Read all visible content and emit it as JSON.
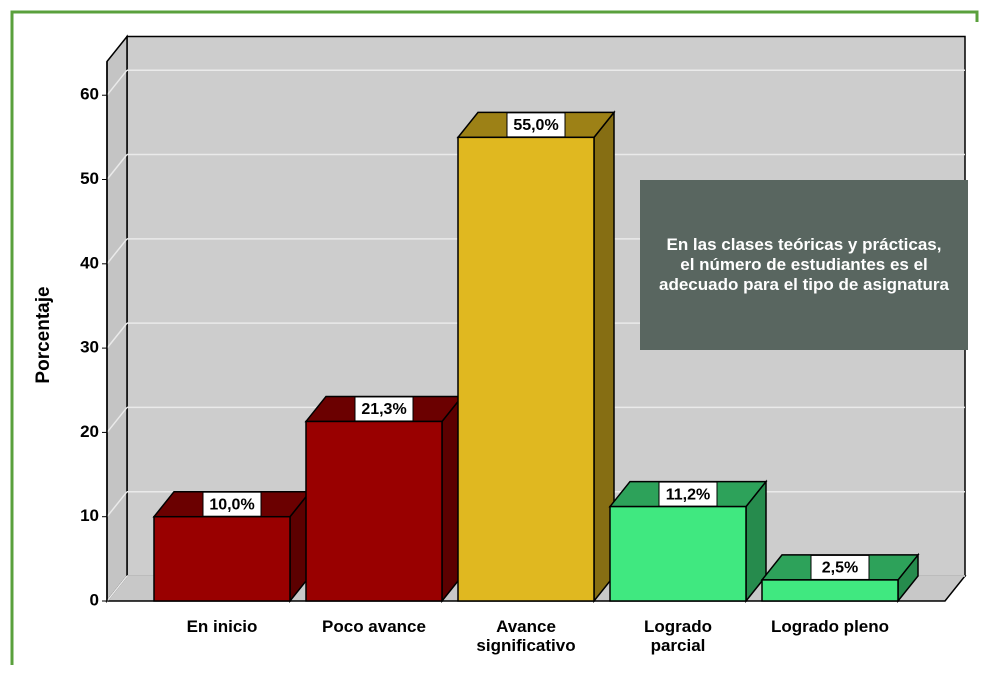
{
  "chart_data": {
    "type": "bar3d",
    "categories": [
      "En inicio",
      "Poco avance",
      "Avance significativo",
      "Logrado parcial",
      "Logrado pleno"
    ],
    "values": [
      10.0,
      21.3,
      55.0,
      11.2,
      2.5
    ],
    "value_labels": [
      "10,0%",
      "21,3%",
      "55,0%",
      "11,2%",
      "2,5%"
    ],
    "colors": [
      "#990000",
      "#990000",
      "#e0b820",
      "#40e880",
      "#40e880"
    ],
    "y_label": "Porcentaje",
    "annotation": "En las clases teóricas y prácticas, el número de estudiantes es el adecuado para el tipo de asignatura",
    "ylim": [
      0,
      64
    ],
    "yticks": [
      0,
      10,
      20,
      30,
      40,
      50,
      60
    ],
    "grid": true
  }
}
